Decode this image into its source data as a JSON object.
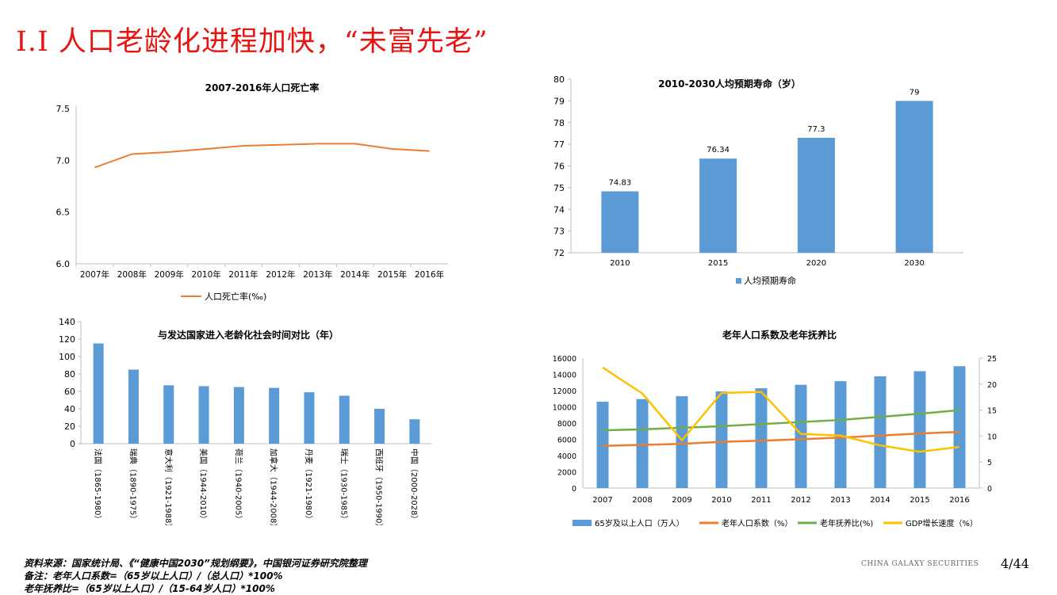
{
  "header": {
    "title": "I.I 人口老龄化进程加快，“未富先老”"
  },
  "chart_data": [
    {
      "type": "line",
      "title": "2007-2016年人口死亡率",
      "categories": [
        "2007年",
        "2008年",
        "2009年",
        "2010年",
        "2011年",
        "2012年",
        "2013年",
        "2014年",
        "2015年",
        "2016年"
      ],
      "series": [
        {
          "name": "人口死亡率(‰)",
          "values": [
            6.93,
            7.06,
            7.08,
            7.11,
            7.14,
            7.15,
            7.16,
            7.16,
            7.11,
            7.09
          ],
          "color": "#ed7d31"
        }
      ],
      "y_ticks": [
        "6.0",
        "6.5",
        "7.0",
        "7.5"
      ],
      "ylim": [
        6.0,
        7.5
      ],
      "legend": "bottom"
    },
    {
      "type": "bar",
      "title": "2010-2030人均预期寿命（岁）",
      "categories": [
        "2010",
        "2015",
        "2020",
        "2030"
      ],
      "series": [
        {
          "name": "人均预期寿命",
          "values": [
            74.83,
            76.34,
            77.3,
            79
          ],
          "labels": [
            "74.83",
            "76.34",
            "77.3",
            "79"
          ],
          "color": "#5b9bd5"
        }
      ],
      "y_ticks": [
        "72",
        "73",
        "74",
        "75",
        "76",
        "77",
        "78",
        "79",
        "80"
      ],
      "ylim": [
        72,
        80
      ],
      "legend": "bottom"
    },
    {
      "type": "bar",
      "title": "与发达国家进入老龄化社会时间对比（年）",
      "categories": [
        "法国（1865-1980）",
        "瑞典（1890-1975）",
        "意大利（1921-1988）",
        "美国（1944-2010）",
        "荷兰（1940-2005）",
        "加拿大（1944-2008）",
        "丹麦（1921-1980）",
        "瑞士（1930-1985）",
        "西班牙（1950-1990）",
        "中国（2000-2028）"
      ],
      "series": [
        {
          "values": [
            115,
            85,
            67,
            66,
            65,
            64,
            59,
            55,
            40,
            28
          ],
          "color": "#5b9bd5"
        }
      ],
      "y_ticks": [
        "0",
        "20",
        "40",
        "60",
        "80",
        "100",
        "120",
        "140"
      ],
      "ylim": [
        0,
        140
      ]
    },
    {
      "type": "bar",
      "title": "老年人口系数及老年抚养比",
      "categories": [
        "2007",
        "2008",
        "2009",
        "2010",
        "2011",
        "2012",
        "2013",
        "2014",
        "2015",
        "2016"
      ],
      "series": [
        {
          "name": "65岁及以上人口（万人）",
          "type": "bar",
          "axis": "left",
          "color": "#5b9bd5",
          "values": [
            10636,
            10956,
            11307,
            11894,
            12288,
            12714,
            13161,
            13755,
            14386,
            15003
          ]
        },
        {
          "name": "老年人口系数（%）",
          "type": "line",
          "axis": "right",
          "color": "#ed7d31",
          "values": [
            8.1,
            8.3,
            8.5,
            8.9,
            9.1,
            9.4,
            9.7,
            10.1,
            10.5,
            10.8
          ]
        },
        {
          "name": "老年抚养比(%)",
          "type": "line",
          "axis": "right",
          "color": "#70ad47",
          "values": [
            11.1,
            11.3,
            11.6,
            11.9,
            12.3,
            12.7,
            13.1,
            13.7,
            14.3,
            15.0
          ]
        },
        {
          "name": "GDP增长速度（%）",
          "type": "line",
          "axis": "right",
          "color": "#ffc000",
          "values": [
            23.2,
            18.2,
            9.2,
            18.3,
            18.5,
            10.4,
            10.1,
            8.2,
            7.0,
            7.9
          ]
        }
      ],
      "y_left_ticks": [
        "0",
        "2000",
        "4000",
        "6000",
        "8000",
        "10000",
        "12000",
        "14000",
        "16000"
      ],
      "y_right_ticks": [
        "0",
        "5",
        "10",
        "15",
        "20",
        "25"
      ],
      "ylim_left": [
        0,
        16000
      ],
      "ylim_right": [
        0,
        25
      ],
      "legend": "bottom"
    }
  ],
  "footer": {
    "source": "资料来源：国家统计局、《“健康中国2030”规划纲要》，中国银河证券研究院整理",
    "note1": "备注：老年人口系数=（65岁以上人口）/（总人口）*100%",
    "note2": "老年抚养比=（65岁以上人口）/（15-64岁人口）*100%"
  },
  "brand": "CHINA GALAXY SECURITIES",
  "page_number": "4/44"
}
